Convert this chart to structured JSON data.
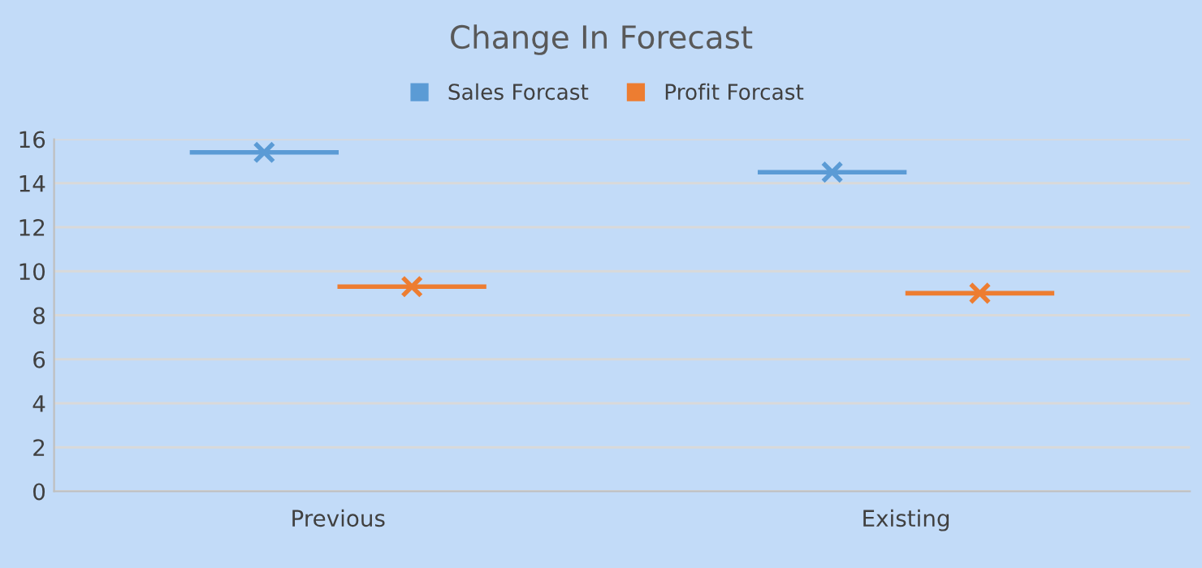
{
  "chart_data": {
    "type": "scatter",
    "title": "Change In Forecast",
    "categories": [
      "Previous",
      "Existing"
    ],
    "series": [
      {
        "name": "Sales Forcast",
        "color": "#5b9bd5",
        "values": [
          15.4,
          14.5
        ]
      },
      {
        "name": "Profit Forcast",
        "color": "#ed7d31",
        "values": [
          9.3,
          9.0
        ]
      }
    ],
    "ylim": [
      0,
      16
    ],
    "yticks": [
      0,
      2,
      4,
      6,
      8,
      10,
      12,
      14,
      16
    ],
    "grid": "y",
    "legend": "top",
    "marker": "cross"
  }
}
